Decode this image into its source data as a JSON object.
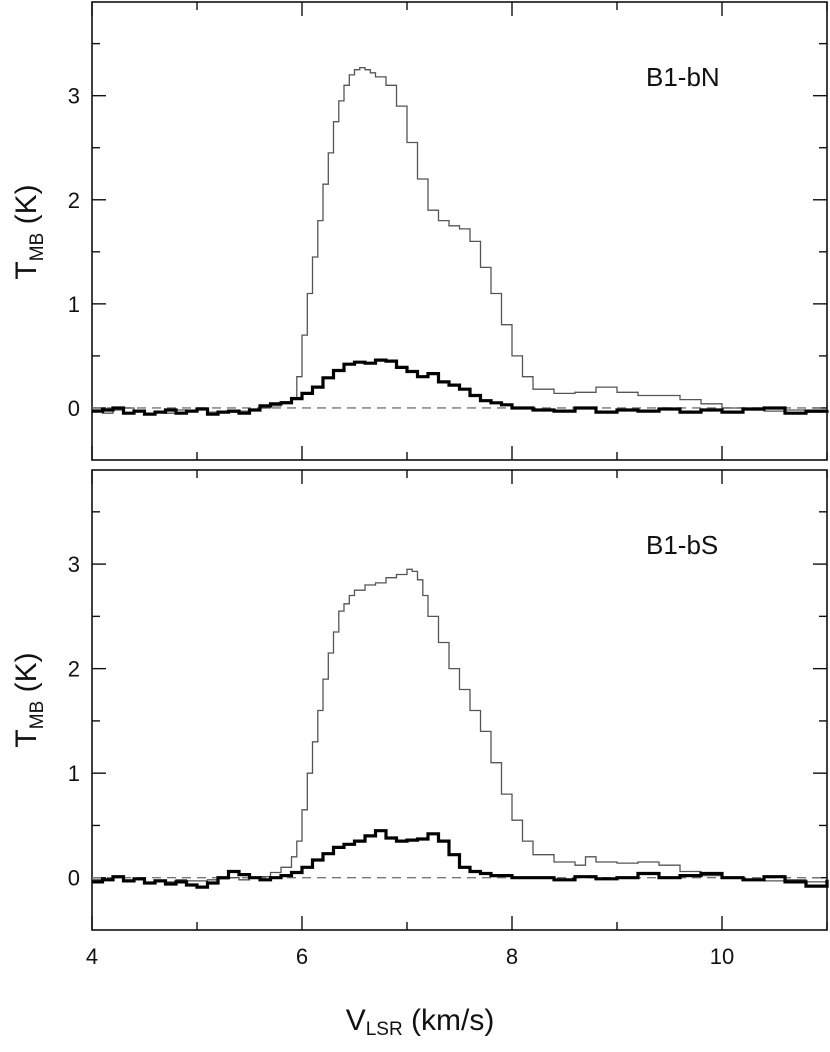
{
  "chart_data": [
    {
      "type": "line",
      "panel_label": "B1-bN",
      "ylabel": "T",
      "ylabel_sub": "MB",
      "ylabel_unit": " (K)",
      "xlabel": "",
      "xlim": [
        4,
        11
      ],
      "ylim": [
        -0.5,
        3.9
      ],
      "yticks": [
        "0",
        "1",
        "2",
        "3"
      ],
      "xticks": [],
      "zero_line": "dashed",
      "series": [
        {
          "style": "thin",
          "x": [
            4.0,
            4.1,
            4.2,
            4.3,
            4.4,
            4.5,
            4.6,
            4.7,
            4.8,
            4.9,
            5.0,
            5.1,
            5.2,
            5.3,
            5.4,
            5.5,
            5.6,
            5.7,
            5.8,
            5.9,
            5.95,
            6.0,
            6.05,
            6.1,
            6.15,
            6.2,
            6.25,
            6.3,
            6.35,
            6.4,
            6.45,
            6.5,
            6.55,
            6.6,
            6.65,
            6.7,
            6.8,
            6.9,
            7.0,
            7.1,
            7.2,
            7.3,
            7.4,
            7.5,
            7.6,
            7.7,
            7.8,
            7.9,
            8.0,
            8.1,
            8.2,
            8.4,
            8.6,
            8.8,
            9.0,
            9.2,
            9.4,
            9.6,
            9.8,
            10.0,
            10.2,
            10.4,
            10.6,
            10.8,
            11.0
          ],
          "y": [
            -0.02,
            -0.05,
            -0.02,
            0.0,
            -0.03,
            -0.05,
            -0.04,
            -0.05,
            -0.02,
            -0.03,
            0.0,
            -0.04,
            -0.03,
            -0.04,
            -0.03,
            -0.02,
            0.0,
            0.02,
            0.06,
            0.1,
            0.3,
            0.7,
            1.1,
            1.45,
            1.8,
            2.15,
            2.45,
            2.75,
            2.95,
            3.1,
            3.2,
            3.25,
            3.27,
            3.25,
            3.22,
            3.18,
            3.1,
            2.9,
            2.55,
            2.2,
            1.9,
            1.8,
            1.75,
            1.72,
            1.6,
            1.35,
            1.1,
            0.8,
            0.5,
            0.3,
            0.18,
            0.14,
            0.15,
            0.2,
            0.15,
            0.12,
            0.12,
            0.08,
            0.04,
            0.0,
            -0.02,
            -0.03,
            -0.02,
            -0.04,
            -0.02
          ]
        },
        {
          "style": "thick",
          "x": [
            4.0,
            4.1,
            4.2,
            4.3,
            4.4,
            4.5,
            4.6,
            4.7,
            4.8,
            4.9,
            5.0,
            5.1,
            5.2,
            5.3,
            5.4,
            5.5,
            5.6,
            5.7,
            5.8,
            5.9,
            6.0,
            6.1,
            6.2,
            6.3,
            6.4,
            6.5,
            6.6,
            6.7,
            6.8,
            6.9,
            7.0,
            7.1,
            7.2,
            7.3,
            7.4,
            7.5,
            7.6,
            7.7,
            7.8,
            7.9,
            8.0,
            8.2,
            8.4,
            8.6,
            8.8,
            9.0,
            9.2,
            9.4,
            9.6,
            9.8,
            10.0,
            10.2,
            10.4,
            10.6,
            10.8,
            11.0
          ],
          "y": [
            -0.03,
            -0.02,
            0.0,
            -0.05,
            -0.03,
            -0.06,
            -0.04,
            -0.02,
            -0.05,
            -0.03,
            -0.01,
            -0.06,
            -0.04,
            -0.03,
            -0.05,
            -0.02,
            0.02,
            0.04,
            0.05,
            0.09,
            0.14,
            0.2,
            0.29,
            0.36,
            0.42,
            0.44,
            0.43,
            0.46,
            0.45,
            0.39,
            0.35,
            0.3,
            0.33,
            0.25,
            0.22,
            0.18,
            0.12,
            0.07,
            0.05,
            0.03,
            0.0,
            -0.02,
            -0.03,
            0.0,
            -0.04,
            -0.02,
            -0.03,
            -0.01,
            -0.04,
            -0.02,
            -0.04,
            -0.01,
            0.0,
            -0.05,
            -0.03,
            -0.02
          ]
        }
      ]
    },
    {
      "type": "line",
      "panel_label": "B1-bS",
      "ylabel": "T",
      "ylabel_sub": "MB",
      "ylabel_unit": " (K)",
      "xlabel": "V",
      "xlabel_sub": "LSR",
      "xlabel_unit": " (km/s)",
      "xlim": [
        4,
        11
      ],
      "ylim": [
        -0.5,
        3.9
      ],
      "yticks": [
        "0",
        "1",
        "2",
        "3"
      ],
      "xticks": [
        "4",
        "6",
        "8",
        "10"
      ],
      "zero_line": "dashed",
      "series": [
        {
          "style": "thin",
          "x": [
            4.0,
            4.1,
            4.2,
            4.3,
            4.4,
            4.5,
            4.6,
            4.7,
            4.8,
            4.9,
            5.0,
            5.1,
            5.2,
            5.3,
            5.4,
            5.5,
            5.6,
            5.7,
            5.8,
            5.9,
            5.95,
            6.0,
            6.05,
            6.1,
            6.15,
            6.2,
            6.25,
            6.3,
            6.35,
            6.4,
            6.45,
            6.5,
            6.6,
            6.7,
            6.8,
            6.9,
            7.0,
            7.05,
            7.1,
            7.15,
            7.2,
            7.3,
            7.4,
            7.5,
            7.6,
            7.7,
            7.8,
            7.9,
            8.0,
            8.1,
            8.2,
            8.4,
            8.6,
            8.7,
            8.8,
            9.0,
            9.2,
            9.4,
            9.6,
            9.8,
            10.0,
            10.2,
            10.4,
            10.6,
            10.8,
            11.0
          ],
          "y": [
            -0.02,
            -0.01,
            0.0,
            -0.03,
            -0.02,
            -0.05,
            -0.03,
            -0.04,
            -0.02,
            -0.03,
            -0.03,
            -0.02,
            -0.01,
            0.0,
            -0.02,
            0.0,
            0.01,
            0.05,
            0.1,
            0.2,
            0.35,
            0.65,
            1.0,
            1.3,
            1.6,
            1.9,
            2.15,
            2.35,
            2.55,
            2.62,
            2.7,
            2.75,
            2.8,
            2.82,
            2.87,
            2.9,
            2.95,
            2.93,
            2.85,
            2.7,
            2.5,
            2.25,
            2.0,
            1.8,
            1.6,
            1.4,
            1.1,
            0.8,
            0.55,
            0.35,
            0.22,
            0.15,
            0.12,
            0.2,
            0.15,
            0.14,
            0.15,
            0.12,
            0.06,
            0.02,
            0.0,
            -0.02,
            -0.03,
            -0.02,
            -0.04,
            -0.02
          ]
        },
        {
          "style": "thick",
          "x": [
            4.0,
            4.1,
            4.2,
            4.3,
            4.4,
            4.5,
            4.6,
            4.7,
            4.8,
            4.9,
            5.0,
            5.1,
            5.2,
            5.3,
            5.4,
            5.5,
            5.6,
            5.7,
            5.8,
            5.9,
            6.0,
            6.1,
            6.2,
            6.3,
            6.4,
            6.5,
            6.6,
            6.7,
            6.8,
            6.9,
            7.0,
            7.1,
            7.2,
            7.3,
            7.4,
            7.5,
            7.6,
            7.7,
            7.8,
            8.0,
            8.2,
            8.4,
            8.6,
            8.8,
            9.0,
            9.2,
            9.4,
            9.6,
            9.8,
            10.0,
            10.2,
            10.4,
            10.6,
            10.8,
            11.0
          ],
          "y": [
            -0.04,
            -0.02,
            0.01,
            -0.03,
            -0.01,
            -0.05,
            -0.03,
            -0.06,
            -0.04,
            -0.07,
            -0.09,
            -0.05,
            0.0,
            0.06,
            0.03,
            0.0,
            -0.02,
            0.0,
            0.02,
            0.05,
            0.1,
            0.17,
            0.23,
            0.29,
            0.32,
            0.35,
            0.4,
            0.45,
            0.38,
            0.35,
            0.36,
            0.37,
            0.42,
            0.35,
            0.22,
            0.1,
            0.06,
            0.04,
            0.02,
            0.0,
            0.0,
            -0.02,
            0.01,
            -0.01,
            0.0,
            0.04,
            0.0,
            0.02,
            0.04,
            0.0,
            -0.02,
            0.01,
            -0.04,
            -0.08,
            -0.02
          ]
        }
      ]
    }
  ]
}
